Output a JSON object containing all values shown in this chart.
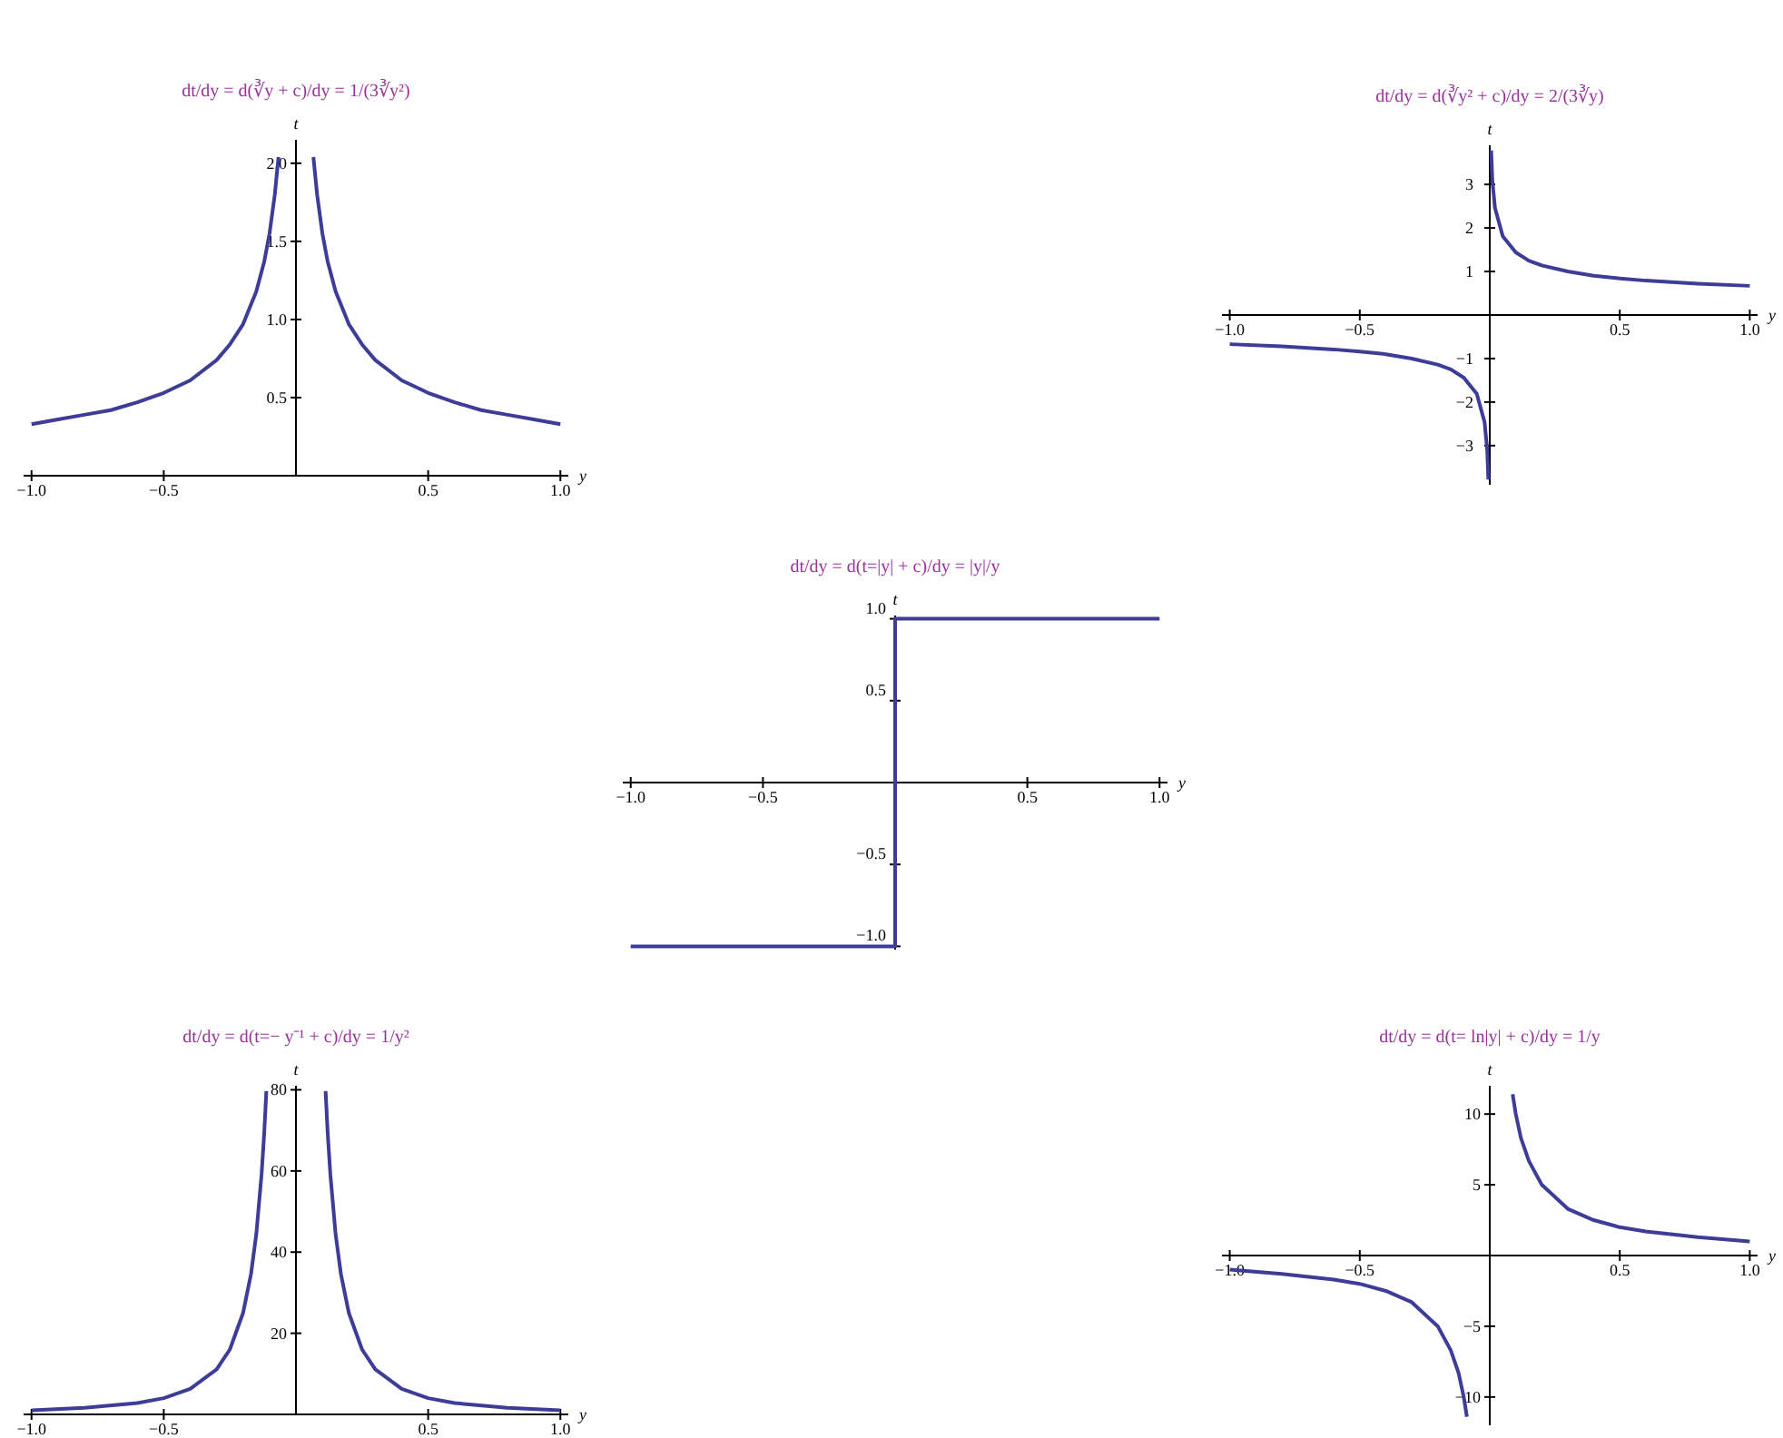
{
  "chart_data": [
    {
      "type": "line",
      "title": "dt/dy = d(∛y + c)/dy = 1/(3∛y²)",
      "xlabel": "y",
      "ylabel": "t",
      "marker": "none",
      "xlim": [
        -1.03,
        1.03
      ],
      "ylim": [
        0,
        2.15
      ],
      "xticks": [
        {
          "value": -1,
          "label": "−1.0"
        },
        {
          "value": -0.5,
          "label": "−0.5"
        },
        {
          "value": 0.5,
          "label": "0.5"
        },
        {
          "value": 1,
          "label": "1.0"
        }
      ],
      "yticks": [
        {
          "value": 0.5,
          "label": "0.5"
        },
        {
          "value": 1,
          "label": "1.0"
        },
        {
          "value": 1.5,
          "label": "1.5"
        },
        {
          "value": 2,
          "label": "2.0"
        }
      ],
      "x": [
        -1,
        -0.9,
        -0.8,
        -0.7,
        -0.6,
        -0.5,
        -0.4,
        -0.3,
        -0.25,
        -0.2,
        -0.15,
        -0.12,
        -0.1,
        -0.08,
        -0.066,
        0,
        0.066,
        0.08,
        0.1,
        0.12,
        0.15,
        0.2,
        0.25,
        0.3,
        0.4,
        0.5,
        0.6,
        0.7,
        0.8,
        0.9,
        1
      ],
      "series": [
        {
          "color": "#3d3d99",
          "values": [
            0.33,
            0.36,
            0.39,
            0.42,
            0.47,
            0.53,
            0.61,
            0.74,
            0.84,
            0.97,
            1.18,
            1.37,
            1.55,
            1.8,
            2.04,
            null,
            2.04,
            1.8,
            1.55,
            1.37,
            1.18,
            0.97,
            0.84,
            0.74,
            0.61,
            0.53,
            0.47,
            0.42,
            0.39,
            0.36,
            0.33
          ]
        }
      ]
    },
    {
      "type": "line",
      "title": "dt/dy = d(∛y² + c)/dy = 2/(3∛y)",
      "xlabel": "y",
      "ylabel": "t",
      "marker": "none",
      "xlim": [
        -1.03,
        1.03
      ],
      "ylim": [
        -3.9,
        3.9
      ],
      "xticks": [
        {
          "value": -1,
          "label": "−1.0"
        },
        {
          "value": -0.5,
          "label": "−0.5"
        },
        {
          "value": 0.5,
          "label": "0.5"
        },
        {
          "value": 1,
          "label": "1.0"
        }
      ],
      "yticks": [
        {
          "value": -3,
          "label": "−3"
        },
        {
          "value": -2,
          "label": "−2"
        },
        {
          "value": -1,
          "label": "−1"
        },
        {
          "value": 1,
          "label": "1"
        },
        {
          "value": 2,
          "label": "2"
        },
        {
          "value": 3,
          "label": "3"
        }
      ],
      "x": [
        -1,
        -0.8,
        -0.6,
        -0.5,
        -0.4,
        -0.3,
        -0.2,
        -0.15,
        -0.1,
        -0.05,
        -0.02,
        -0.01,
        -0.0055,
        0,
        0.0055,
        0.01,
        0.02,
        0.05,
        0.1,
        0.15,
        0.2,
        0.3,
        0.4,
        0.5,
        0.6,
        0.8,
        1
      ],
      "series": [
        {
          "color": "#3d3d99",
          "values": [
            -0.67,
            -0.72,
            -0.79,
            -0.84,
            -0.9,
            -1.0,
            -1.14,
            -1.25,
            -1.44,
            -1.81,
            -2.46,
            -3.09,
            -3.78,
            null,
            3.78,
            3.09,
            2.46,
            1.81,
            1.44,
            1.25,
            1.14,
            1.0,
            0.9,
            0.84,
            0.79,
            0.72,
            0.67
          ]
        }
      ]
    },
    {
      "type": "line",
      "title": "dt/dy = d(t=|y| + c)/dy = |y|/y",
      "xlabel": "y",
      "ylabel": "t",
      "marker": "none",
      "xlim": [
        -1.03,
        1.03
      ],
      "ylim": [
        -1.02,
        1.02
      ],
      "xticks": [
        {
          "value": -1,
          "label": "−1.0"
        },
        {
          "value": -0.5,
          "label": "−0.5"
        },
        {
          "value": 0.5,
          "label": "0.5"
        },
        {
          "value": 1,
          "label": "1.0"
        }
      ],
      "yticks": [
        {
          "value": -1,
          "label": "−1.0"
        },
        {
          "value": -0.5,
          "label": "−0.5"
        },
        {
          "value": 0.5,
          "label": "0.5"
        },
        {
          "value": 1,
          "label": "1.0"
        }
      ],
      "x": [
        -1,
        0,
        0,
        1
      ],
      "series": [
        {
          "color": "#3d3d99",
          "values": [
            -1,
            -1,
            1,
            1
          ]
        }
      ]
    },
    {
      "type": "line",
      "title": "dt/dy = d(t=− y⁻¹ + c)/dy = 1/y²",
      "xlabel": "y",
      "ylabel": "t",
      "marker": "none",
      "xlim": [
        -1.03,
        1.03
      ],
      "ylim": [
        0,
        81
      ],
      "xticks": [
        {
          "value": -1,
          "label": "−1.0"
        },
        {
          "value": -0.5,
          "label": "−0.5"
        },
        {
          "value": 0.5,
          "label": "0.5"
        },
        {
          "value": 1,
          "label": "1.0"
        }
      ],
      "yticks": [
        {
          "value": 20,
          "label": "20"
        },
        {
          "value": 40,
          "label": "40"
        },
        {
          "value": 60,
          "label": "60"
        },
        {
          "value": 80,
          "label": "80"
        }
      ],
      "x": [
        -1,
        -0.8,
        -0.6,
        -0.5,
        -0.4,
        -0.3,
        -0.25,
        -0.2,
        -0.17,
        -0.15,
        -0.13,
        -0.12,
        -0.112,
        0,
        0.112,
        0.12,
        0.13,
        0.15,
        0.17,
        0.2,
        0.25,
        0.3,
        0.4,
        0.5,
        0.6,
        0.8,
        1
      ],
      "series": [
        {
          "color": "#3d3d99",
          "values": [
            1,
            1.6,
            2.8,
            4,
            6.3,
            11.1,
            16,
            25,
            34.6,
            44.4,
            59.2,
            69.4,
            79.7,
            null,
            79.7,
            69.4,
            59.2,
            44.4,
            34.6,
            25,
            16,
            11.1,
            6.3,
            4,
            2.8,
            1.6,
            1
          ]
        }
      ]
    },
    {
      "type": "line",
      "title": "dt/dy = d(t= ln|y| + c)/dy = 1/y",
      "xlabel": "y",
      "ylabel": "t",
      "marker": "none",
      "xlim": [
        -1.03,
        1.03
      ],
      "ylim": [
        -12,
        12
      ],
      "xticks": [
        {
          "value": -1,
          "label": "−1.0"
        },
        {
          "value": -0.5,
          "label": "−0.5"
        },
        {
          "value": 0.5,
          "label": "0.5"
        },
        {
          "value": 1,
          "label": "1.0"
        }
      ],
      "yticks": [
        {
          "value": -10,
          "label": "−10"
        },
        {
          "value": -5,
          "label": "−5"
        },
        {
          "value": 5,
          "label": "5"
        },
        {
          "value": 10,
          "label": "10"
        }
      ],
      "x": [
        -1,
        -0.8,
        -0.6,
        -0.5,
        -0.4,
        -0.3,
        -0.2,
        -0.15,
        -0.12,
        -0.1,
        -0.088,
        0,
        0.088,
        0.1,
        0.12,
        0.15,
        0.2,
        0.3,
        0.4,
        0.5,
        0.6,
        0.8,
        1
      ],
      "series": [
        {
          "color": "#3d3d99",
          "values": [
            -1,
            -1.3,
            -1.7,
            -2,
            -2.5,
            -3.3,
            -5,
            -6.7,
            -8.3,
            -10,
            -11.4,
            null,
            11.4,
            10,
            8.3,
            6.7,
            5,
            3.3,
            2.5,
            2,
            1.7,
            1.3,
            1
          ]
        }
      ]
    }
  ]
}
